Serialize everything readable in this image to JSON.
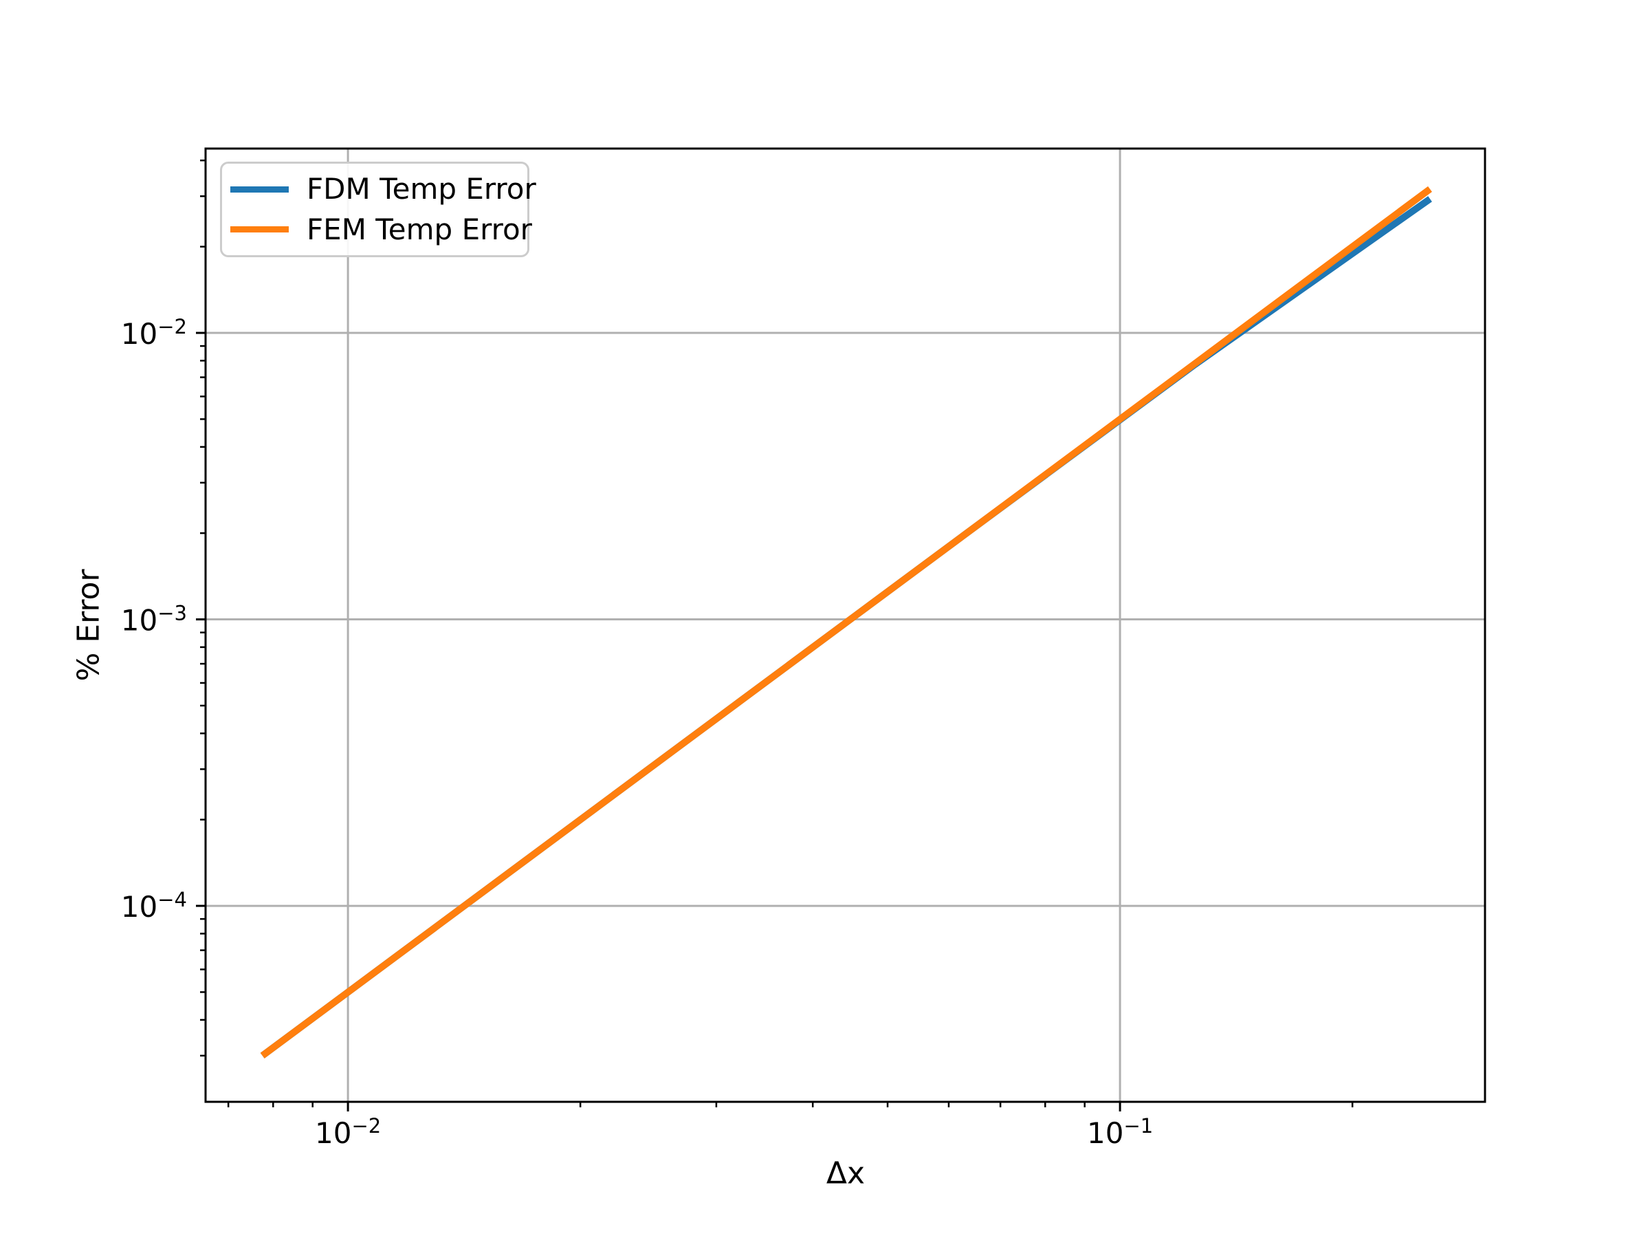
{
  "chart_data": {
    "type": "line",
    "title": "",
    "xlabel": "Δx",
    "ylabel": "% Error",
    "x_scale": "log",
    "y_scale": "log",
    "xlim": [
      0.00654,
      0.297
    ],
    "ylim": [
      2.07e-05,
      0.044
    ],
    "grid": "major-only",
    "legend_position": "upper left",
    "x": [
      0.0078125,
      0.015625,
      0.03125,
      0.0625,
      0.125,
      0.25
    ],
    "series": [
      {
        "name": "FDM Temp Error",
        "color": "#1f77b4",
        "values": [
          3.05e-05,
          0.000122,
          0.000488,
          0.00195,
          0.00775,
          0.0289
        ]
      },
      {
        "name": "FEM Temp Error",
        "color": "#ff7f0e",
        "values": [
          3.05e-05,
          0.000122,
          0.000488,
          0.00195,
          0.00781,
          0.03125
        ]
      }
    ],
    "x_major_ticks": [
      {
        "value": 0.01,
        "base": "10",
        "exp": "−2"
      },
      {
        "value": 0.1,
        "base": "10",
        "exp": "−1"
      }
    ],
    "y_major_ticks": [
      {
        "value": 0.01,
        "base": "10",
        "exp": "−2"
      },
      {
        "value": 0.001,
        "base": "10",
        "exp": "−3"
      },
      {
        "value": 0.0001,
        "base": "10",
        "exp": "−4"
      }
    ],
    "x_minor_ticks": [
      0.007,
      0.008,
      0.009,
      0.02,
      0.03,
      0.04,
      0.05,
      0.06,
      0.07,
      0.08,
      0.09,
      0.2
    ],
    "y_minor_ticks": [
      0.04,
      0.03,
      0.02,
      0.009,
      0.008,
      0.007,
      0.006,
      0.005,
      0.004,
      0.003,
      0.002,
      0.0009,
      0.0008,
      0.0007,
      0.0006,
      0.0005,
      0.0004,
      0.0003,
      0.0002,
      9e-05,
      8e-05,
      7e-05,
      6e-05,
      5e-05,
      4e-05,
      3e-05
    ],
    "colors": {
      "grid": "#b0b0b0",
      "spine": "#000000",
      "tick": "#000000",
      "tick_label": "#000000",
      "background": "#ffffff"
    }
  },
  "legend": {
    "entries": [
      {
        "label": "FDM Temp Error",
        "color": "#1f77b4"
      },
      {
        "label": "FEM Temp Error",
        "color": "#ff7f0e"
      }
    ]
  }
}
